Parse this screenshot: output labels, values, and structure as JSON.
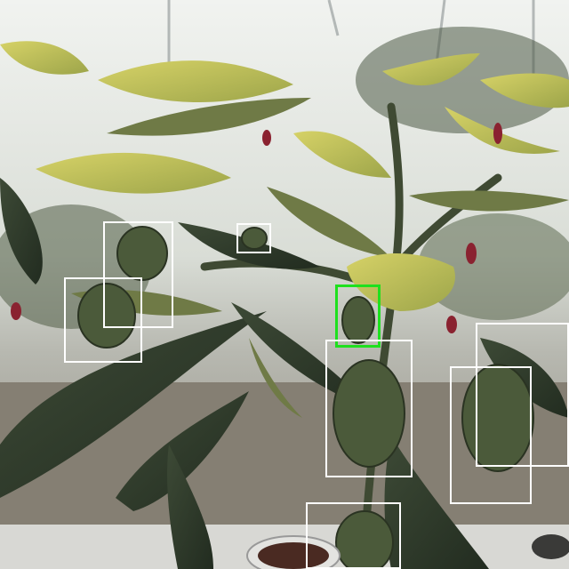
{
  "image": {
    "subject": "pepper-plant-greenhouse",
    "colors": {
      "box_default": "#ffffff",
      "box_selected": "#1ee01e",
      "leaf_dark": "#2d3a2a",
      "leaf_mid": "#6f7a46",
      "leaf_light": "#c9c95e",
      "floor": "#8a8478",
      "sky": "#eef0ee"
    }
  },
  "boxes": [
    {
      "id": "box-1",
      "selected": false
    },
    {
      "id": "box-2",
      "selected": false
    },
    {
      "id": "box-3",
      "selected": false
    },
    {
      "id": "box-4",
      "selected": true
    },
    {
      "id": "box-5",
      "selected": false
    },
    {
      "id": "box-6",
      "selected": false
    },
    {
      "id": "box-7",
      "selected": false
    },
    {
      "id": "box-8",
      "selected": false
    }
  ]
}
